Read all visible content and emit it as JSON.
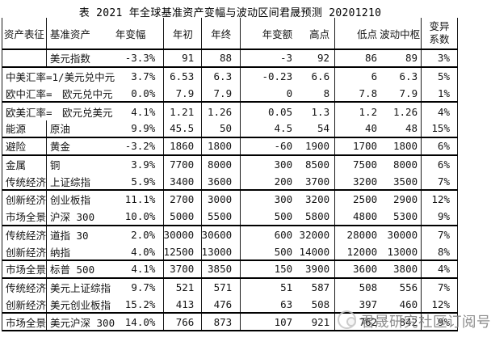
{
  "title": "表  2021 年全球基准资产变幅与波动区间君晟预测 20201210",
  "watermark": {
    "text": "君晟研究社区订阅号"
  },
  "chart_data": {
    "type": "table",
    "title": "表 2021 年全球基准资产变幅与波动区间君晟预测 20201210",
    "columns": [
      "资产表征",
      "基准资产",
      "年变幅",
      "年初",
      "年终",
      "年变额",
      "高点",
      "低点",
      "波动中枢",
      "变异",
      "系数"
    ],
    "rows": [
      {
        "category": "",
        "asset": "美元指数",
        "yoy": "-3.3%",
        "start": "91",
        "end": "88",
        "change": "-3",
        "high": "92",
        "low": "86",
        "pivot": "89",
        "cv": "3%",
        "merged": false,
        "sep": true
      },
      {
        "category": "中美汇率=1/",
        "asset": "美元兑中元",
        "yoy": "3.7%",
        "start": "6.53",
        "end": "6.3",
        "change": "-0.23",
        "high": "6.6",
        "low": "6",
        "pivot": "6.3",
        "cv": "5%",
        "merged": true,
        "sep": false
      },
      {
        "category": "欧中汇率=　",
        "asset": "欧元兑中元",
        "yoy": "0.0%",
        "start": "7.9",
        "end": "7.9",
        "change": "0",
        "high": "8",
        "low": "7.8",
        "pivot": "7.9",
        "cv": "1%",
        "merged": true,
        "sep": true
      },
      {
        "category": "欧美汇率=　",
        "asset": "欧元兑美元",
        "yoy": "4.1%",
        "start": "1.21",
        "end": "1.26",
        "change": "0.05",
        "high": "1.3",
        "low": "1.2",
        "pivot": "1.26",
        "cv": "4%",
        "merged": true,
        "sep": false
      },
      {
        "category": "能源",
        "asset": "原油",
        "yoy": "9.9%",
        "start": "45.5",
        "end": "50",
        "change": "4.5",
        "high": "54",
        "low": "40",
        "pivot": "48",
        "cv": "15%",
        "merged": false,
        "sep": true
      },
      {
        "category": "避险",
        "asset": "黄金",
        "yoy": "-3.2%",
        "start": "1860",
        "end": "1800",
        "change": "-60",
        "high": "1900",
        "low": "1700",
        "pivot": "1800",
        "cv": "6%",
        "merged": false,
        "sep": true
      },
      {
        "category": "金属",
        "asset": "铜",
        "yoy": "3.9%",
        "start": "7700",
        "end": "8000",
        "change": "300",
        "high": "8500",
        "low": "7500",
        "pivot": "8000",
        "cv": "6%",
        "merged": false,
        "sep": false
      },
      {
        "category": "传统经济",
        "asset": "上证综指",
        "yoy": "5.9%",
        "start": "3400",
        "end": "3600",
        "change": "200",
        "high": "3700",
        "low": "3200",
        "pivot": "3500",
        "cv": "7%",
        "merged": false,
        "sep": true
      },
      {
        "category": "创新经济",
        "asset": "创业板指",
        "yoy": "11.1%",
        "start": "2700",
        "end": "3000",
        "change": "300",
        "high": "3200",
        "low": "2500",
        "pivot": "2900",
        "cv": "12%",
        "merged": false,
        "sep": false
      },
      {
        "category": "市场全景",
        "asset": "沪深 300",
        "yoy": "10.0%",
        "start": "5000",
        "end": "5500",
        "change": "500",
        "high": "5800",
        "low": "4800",
        "pivot": "5300",
        "cv": "9%",
        "merged": false,
        "sep": true
      },
      {
        "category": "传统经济",
        "asset": "道指 30",
        "yoy": "2.0%",
        "start": "30000",
        "end": "30600",
        "change": "600",
        "high": "32000",
        "low": "28000",
        "pivot": "30000",
        "cv": "7%",
        "merged": false,
        "sep": false
      },
      {
        "category": "创新经济",
        "asset": "纳指",
        "yoy": "4.0%",
        "start": "12500",
        "end": "13000",
        "change": "500",
        "high": "14000",
        "low": "12000",
        "pivot": "13000",
        "cv": "8%",
        "merged": false,
        "sep": true
      },
      {
        "category": "市场全景",
        "asset": "标普 500",
        "yoy": "4.1%",
        "start": "3700",
        "end": "3850",
        "change": "150",
        "high": "3900",
        "low": "3600",
        "pivot": "3800",
        "cv": "4%",
        "merged": false,
        "sep": true
      },
      {
        "category": "传统经济",
        "asset": "美元上证综指",
        "yoy": "9.7%",
        "start": "521",
        "end": "571",
        "change": "51",
        "high": "587",
        "low": "508",
        "pivot": "556",
        "cv": "7%",
        "merged": false,
        "sep": false
      },
      {
        "category": "创新经济",
        "asset": "美元创业板指",
        "yoy": "15.2%",
        "start": "413",
        "end": "476",
        "change": "63",
        "high": "508",
        "low": "397",
        "pivot": "460",
        "cv": "12%",
        "merged": false,
        "sep": true
      },
      {
        "category": "市场全景",
        "asset": "美元沪深 300",
        "yoy": "14.0%",
        "start": "766",
        "end": "873",
        "change": "107",
        "high": "921",
        "low": "762",
        "pivot": "842",
        "cv": "9%",
        "merged": false,
        "sep": true
      }
    ]
  }
}
